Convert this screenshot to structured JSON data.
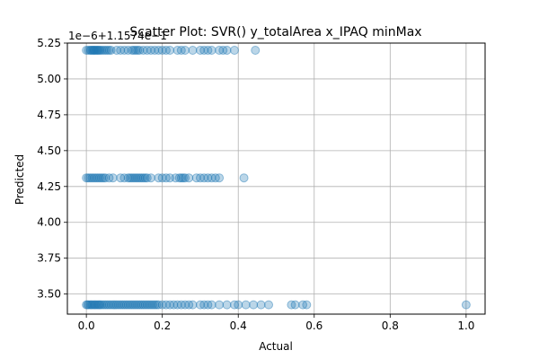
{
  "chart_data": {
    "type": "scatter",
    "title": "Scatter Plot: SVR() y_totalArea x_IPAQ minMax",
    "xlabel": "Actual",
    "ylabel": "Predicted",
    "y_offset_text": "1e−6+1.1574e−1",
    "xlim": [
      -0.05,
      1.05
    ],
    "ylim": [
      3.36,
      5.25
    ],
    "x_ticks": [
      0.0,
      0.2,
      0.4,
      0.6,
      0.8,
      1.0
    ],
    "x_tick_labels": [
      "0.0",
      "0.2",
      "0.4",
      "0.6",
      "0.8",
      "1.0"
    ],
    "y_ticks": [
      3.5,
      3.75,
      4.0,
      4.25,
      4.5,
      4.75,
      5.0,
      5.25
    ],
    "y_tick_labels": [
      "3.50",
      "3.75",
      "4.00",
      "4.25",
      "4.50",
      "4.75",
      "5.00",
      "5.25"
    ],
    "grid": true,
    "marker_color": "#1f77b4",
    "marker_alpha": 0.3,
    "series": [
      {
        "y": 5.2,
        "x": [
          0.0,
          0.005,
          0.01,
          0.012,
          0.015,
          0.018,
          0.02,
          0.022,
          0.025,
          0.028,
          0.03,
          0.033,
          0.036,
          0.04,
          0.045,
          0.05,
          0.055,
          0.06,
          0.065,
          0.08,
          0.09,
          0.1,
          0.11,
          0.12,
          0.125,
          0.13,
          0.135,
          0.14,
          0.15,
          0.16,
          0.17,
          0.18,
          0.19,
          0.2,
          0.21,
          0.22,
          0.24,
          0.25,
          0.26,
          0.28,
          0.3,
          0.31,
          0.32,
          0.33,
          0.35,
          0.36,
          0.37,
          0.39,
          0.445
        ]
      },
      {
        "y": 4.31,
        "x": [
          0.0,
          0.005,
          0.01,
          0.015,
          0.02,
          0.025,
          0.03,
          0.035,
          0.04,
          0.045,
          0.05,
          0.06,
          0.07,
          0.09,
          0.1,
          0.11,
          0.115,
          0.12,
          0.125,
          0.13,
          0.135,
          0.14,
          0.145,
          0.15,
          0.155,
          0.16,
          0.17,
          0.19,
          0.2,
          0.21,
          0.22,
          0.235,
          0.245,
          0.25,
          0.255,
          0.26,
          0.27,
          0.29,
          0.3,
          0.31,
          0.32,
          0.33,
          0.34,
          0.35,
          0.415
        ]
      },
      {
        "y": 3.425,
        "x": [
          0.0,
          0.003,
          0.006,
          0.01,
          0.013,
          0.016,
          0.02,
          0.023,
          0.026,
          0.03,
          0.033,
          0.036,
          0.04,
          0.045,
          0.05,
          0.055,
          0.06,
          0.065,
          0.07,
          0.075,
          0.08,
          0.085,
          0.09,
          0.095,
          0.1,
          0.105,
          0.11,
          0.115,
          0.12,
          0.125,
          0.13,
          0.135,
          0.14,
          0.145,
          0.15,
          0.155,
          0.16,
          0.165,
          0.17,
          0.175,
          0.18,
          0.185,
          0.19,
          0.2,
          0.21,
          0.22,
          0.23,
          0.24,
          0.25,
          0.26,
          0.27,
          0.28,
          0.3,
          0.31,
          0.32,
          0.33,
          0.35,
          0.37,
          0.39,
          0.4,
          0.42,
          0.44,
          0.46,
          0.48,
          0.54,
          0.55,
          0.57,
          0.58,
          1.0
        ]
      }
    ]
  }
}
